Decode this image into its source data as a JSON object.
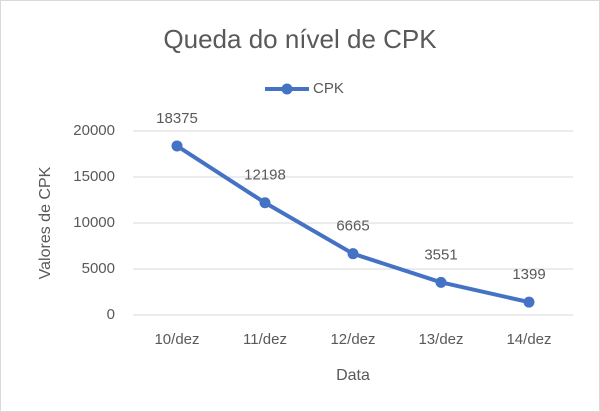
{
  "chart_data": {
    "type": "line",
    "title": "Queda do nível de CPK",
    "x_label": "Data",
    "y_label": "Valores de CPK",
    "categories": [
      "10/dez",
      "11/dez",
      "12/dez",
      "13/dez",
      "14/dez"
    ],
    "series": [
      {
        "name": "CPK",
        "color": "#4472c4",
        "values": [
          18375,
          12198,
          6665,
          3551,
          1399
        ]
      }
    ],
    "ylim": [
      0,
      20000
    ],
    "yticks": [
      0,
      5000,
      10000,
      15000,
      20000
    ],
    "grid": true,
    "legend": "top",
    "data_labels": true
  }
}
